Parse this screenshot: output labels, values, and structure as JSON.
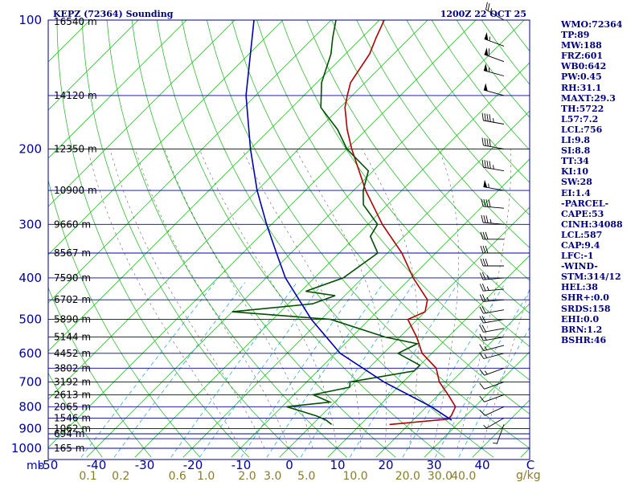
{
  "header": {
    "title": "KEPZ (72364) Sounding",
    "datetime": "1200Z 22 OCT 25"
  },
  "stats": [
    "WMO:72364",
    "TP:89",
    "MW:188",
    "FRZ:601",
    "WB0:642",
    "PW:0.45",
    "RH:31.1",
    "MAXT:29.3",
    "TH:5722",
    "L57:7.2",
    "LCL:756",
    "LI:9.8",
    "SI:8.8",
    "TT:34",
    "KI:10",
    "SW:28",
    "EI:1.4",
    "-PARCEL-",
    "CAPE:53",
    "CINH:34088",
    "LCL:587",
    "CAP:9.4",
    "LFC:-1",
    "-WIND-",
    "STM:314/12",
    "HEL:38",
    "SHR+:0.0",
    "SRDS:158",
    "EHI:0.0",
    "BRN:1.2",
    "BSHR:46"
  ],
  "colors": {
    "frame": "#000080",
    "isobar": "#0000a0",
    "temperature": "#b00000",
    "dewpoint": "#005000",
    "parcel": "#0000b0",
    "dry_adiabat": "#33bb33",
    "moist_adiabat": "#000000",
    "mixing_ratio": "#33aadd",
    "mixing_label": "#8a7a2a"
  },
  "chart_data": {
    "type": "line",
    "title": "KEPZ (72364) Sounding",
    "subtitle": "1200Z 22 OCT 25",
    "xlabel": "",
    "ylabel": "mb",
    "ylim_hpa": [
      1000,
      100
    ],
    "xlim_c": [
      -50,
      50
    ],
    "pressure_axis_labels": [
      {
        "p": 100,
        "text": "100"
      },
      {
        "p": 200,
        "text": "200"
      },
      {
        "p": 300,
        "text": "300"
      },
      {
        "p": 400,
        "text": "400"
      },
      {
        "p": 500,
        "text": "500"
      },
      {
        "p": 600,
        "text": "600"
      },
      {
        "p": 700,
        "text": "700"
      },
      {
        "p": 800,
        "text": "800"
      },
      {
        "p": 900,
        "text": "900"
      },
      {
        "p": 1000,
        "text": "1000"
      }
    ],
    "temperature_axis_labels": [
      {
        "t": -50,
        "text": "-50"
      },
      {
        "t": -40,
        "text": "-40"
      },
      {
        "t": -30,
        "text": "-30"
      },
      {
        "t": -20,
        "text": "-20"
      },
      {
        "t": -10,
        "text": "-10"
      },
      {
        "t": 0,
        "text": "0"
      },
      {
        "t": 10,
        "text": "10"
      },
      {
        "t": 20,
        "text": "20"
      },
      {
        "t": 30,
        "text": "30"
      },
      {
        "t": 40,
        "text": "40"
      },
      {
        "t": 50,
        "text": "C"
      }
    ],
    "mixing_ratio_labels": [
      {
        "w": 0.1,
        "text": "0.1"
      },
      {
        "w": 0.2,
        "text": "0.2"
      },
      {
        "w": 0.6,
        "text": "0.6"
      },
      {
        "w": 1.0,
        "text": "1.0"
      },
      {
        "w": 2.0,
        "text": "2.0"
      },
      {
        "w": 3.0,
        "text": "3.0"
      },
      {
        "w": 5.0,
        "text": "5.0"
      },
      {
        "w": 10.0,
        "text": "10.0"
      },
      {
        "w": 20.0,
        "text": "20.0"
      },
      {
        "w": 30.0,
        "text": "30.0"
      },
      {
        "w": 40.0,
        "text": "40.0"
      }
    ],
    "mixing_unit": "g/kg",
    "height_labels": [
      {
        "p": 100,
        "text": "16540 m"
      },
      {
        "p": 150,
        "text": "14120 m"
      },
      {
        "p": 200,
        "text": "12350 m"
      },
      {
        "p": 250,
        "text": "10900 m"
      },
      {
        "p": 300,
        "text": "9660 m"
      },
      {
        "p": 350,
        "text": "8567 m"
      },
      {
        "p": 400,
        "text": "7590 m"
      },
      {
        "p": 450,
        "text": "6702 m"
      },
      {
        "p": 500,
        "text": "5890 m"
      },
      {
        "p": 550,
        "text": "5144 m"
      },
      {
        "p": 600,
        "text": "4452 m"
      },
      {
        "p": 650,
        "text": "3802 m"
      },
      {
        "p": 700,
        "text": "3192 m"
      },
      {
        "p": 750,
        "text": "2613 m"
      },
      {
        "p": 800,
        "text": "2065 m"
      },
      {
        "p": 850,
        "text": "1546 m"
      },
      {
        "p": 900,
        "text": "1062 m"
      },
      {
        "p": 925,
        "text": "694 m"
      },
      {
        "p": 1000,
        "text": "165 m"
      }
    ],
    "series": [
      {
        "key": "temperature",
        "points": [
          [
            880,
            16.0
          ],
          [
            855,
            27.0
          ],
          [
            840,
            27.0
          ],
          [
            800,
            26.0
          ],
          [
            750,
            22.0
          ],
          [
            700,
            17.5
          ],
          [
            650,
            14.0
          ],
          [
            600,
            8.0
          ],
          [
            550,
            3.5
          ],
          [
            500,
            -2.0
          ],
          [
            480,
            0.0
          ],
          [
            450,
            -2.0
          ],
          [
            400,
            -9.5
          ],
          [
            350,
            -17.0
          ],
          [
            300,
            -27.0
          ],
          [
            250,
            -37.5
          ],
          [
            200,
            -49.0
          ],
          [
            180,
            -54.0
          ],
          [
            160,
            -59.0
          ],
          [
            150,
            -61.0
          ],
          [
            140,
            -63.0
          ],
          [
            120,
            -65.0
          ],
          [
            110,
            -67.0
          ],
          [
            100,
            -69.0
          ]
        ]
      },
      {
        "key": "dewpoint",
        "points": [
          [
            880,
            4.0
          ],
          [
            860,
            2.0
          ],
          [
            840,
            -1.0
          ],
          [
            800,
            -9.0
          ],
          [
            780,
            -1.0
          ],
          [
            750,
            -6.0
          ],
          [
            720,
            0.0
          ],
          [
            700,
            -1.0
          ],
          [
            660,
            10.0
          ],
          [
            640,
            10.0
          ],
          [
            600,
            3.0
          ],
          [
            570,
            5.0
          ],
          [
            550,
            -3.0
          ],
          [
            500,
            -18.0
          ],
          [
            480,
            -40.0
          ],
          [
            460,
            -25.0
          ],
          [
            440,
            -22.0
          ],
          [
            430,
            -29.0
          ],
          [
            400,
            -24.0
          ],
          [
            350,
            -22.0
          ],
          [
            320,
            -27.0
          ],
          [
            300,
            -28.0
          ],
          [
            270,
            -35.0
          ],
          [
            250,
            -38.0
          ],
          [
            225,
            -41.0
          ],
          [
            200,
            -50.0
          ],
          [
            180,
            -56.0
          ],
          [
            160,
            -64.0
          ],
          [
            140,
            -69.0
          ],
          [
            120,
            -73.0
          ],
          [
            110,
            -76.0
          ],
          [
            100,
            -79.0
          ]
        ]
      },
      {
        "key": "parcel",
        "points": [
          [
            860,
            28.0
          ],
          [
            800,
            21.0
          ],
          [
            700,
            6.0
          ],
          [
            600,
            -9.0
          ],
          [
            500,
            -22.0
          ],
          [
            400,
            -36.0
          ],
          [
            350,
            -43.0
          ],
          [
            300,
            -51.0
          ],
          [
            250,
            -60.0
          ],
          [
            200,
            -70.0
          ],
          [
            150,
            -82.0
          ],
          [
            100,
            -96.0
          ]
        ]
      }
    ],
    "wind_barbs": [
      {
        "p": 100,
        "dir": 300,
        "spd": 25
      },
      {
        "p": 115,
        "dir": 290,
        "spd": 55
      },
      {
        "p": 125,
        "dir": 290,
        "spd": 60
      },
      {
        "p": 135,
        "dir": 285,
        "spd": 55
      },
      {
        "p": 150,
        "dir": 285,
        "spd": 50
      },
      {
        "p": 175,
        "dir": 280,
        "spd": 45
      },
      {
        "p": 200,
        "dir": 280,
        "spd": 40
      },
      {
        "p": 225,
        "dir": 280,
        "spd": 45
      },
      {
        "p": 250,
        "dir": 280,
        "spd": 55
      },
      {
        "p": 275,
        "dir": 275,
        "spd": 40
      },
      {
        "p": 300,
        "dir": 275,
        "spd": 35
      },
      {
        "p": 325,
        "dir": 270,
        "spd": 30
      },
      {
        "p": 350,
        "dir": 270,
        "spd": 30
      },
      {
        "p": 375,
        "dir": 270,
        "spd": 30
      },
      {
        "p": 400,
        "dir": 265,
        "spd": 25
      },
      {
        "p": 425,
        "dir": 265,
        "spd": 25
      },
      {
        "p": 450,
        "dir": 265,
        "spd": 25
      },
      {
        "p": 475,
        "dir": 260,
        "spd": 20
      },
      {
        "p": 500,
        "dir": 260,
        "spd": 20
      },
      {
        "p": 525,
        "dir": 260,
        "spd": 20
      },
      {
        "p": 550,
        "dir": 260,
        "spd": 15
      },
      {
        "p": 575,
        "dir": 255,
        "spd": 15
      },
      {
        "p": 600,
        "dir": 255,
        "spd": 15
      },
      {
        "p": 650,
        "dir": 250,
        "spd": 15
      },
      {
        "p": 700,
        "dir": 250,
        "spd": 10
      },
      {
        "p": 750,
        "dir": 250,
        "spd": 10
      },
      {
        "p": 800,
        "dir": 245,
        "spd": 10
      },
      {
        "p": 850,
        "dir": 240,
        "spd": 5
      },
      {
        "p": 880,
        "dir": 200,
        "spd": 5
      }
    ]
  }
}
